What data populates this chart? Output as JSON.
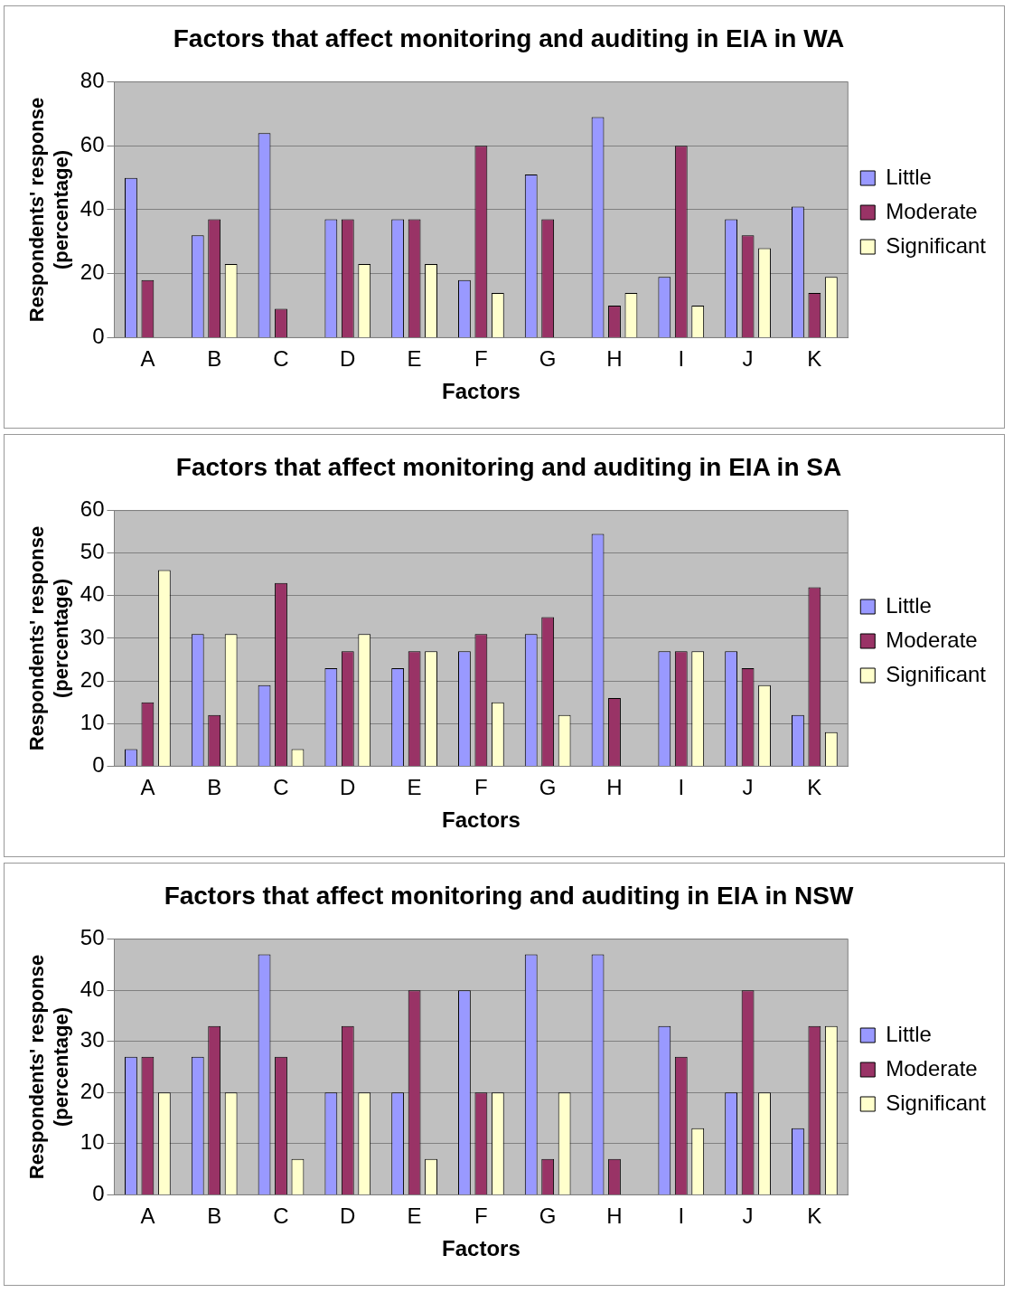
{
  "chart_data": [
    {
      "type": "bar",
      "title": "Factors that affect monitoring and auditing in EIA in WA",
      "xlabel": "Factors",
      "ylabel": "Respondents' response (percentage)",
      "categories": [
        "A",
        "B",
        "C",
        "D",
        "E",
        "F",
        "G",
        "H",
        "I",
        "J",
        "K"
      ],
      "series": [
        {
          "name": "Little",
          "color": "#9999ff",
          "values": [
            50,
            32,
            64,
            37,
            37,
            18,
            51,
            69,
            19,
            37,
            41
          ]
        },
        {
          "name": "Moderate",
          "color": "#993366",
          "values": [
            18,
            37,
            9,
            37,
            37,
            60,
            37,
            10,
            60,
            32,
            14
          ]
        },
        {
          "name": "Significant",
          "color": "#ffffcc",
          "values": [
            0,
            23,
            0,
            23,
            23,
            14,
            0,
            14,
            10,
            28,
            19
          ]
        }
      ],
      "ylim": [
        0,
        80
      ],
      "yticks": [
        0,
        20,
        40,
        60,
        80
      ],
      "grid": "y",
      "legend": "right"
    },
    {
      "type": "bar",
      "title": "Factors that affect monitoring and auditing in EIA in SA",
      "xlabel": "Factors",
      "ylabel": "Respondents' response (percentage)",
      "categories": [
        "A",
        "B",
        "C",
        "D",
        "E",
        "F",
        "G",
        "H",
        "I",
        "J",
        "K"
      ],
      "series": [
        {
          "name": "Little",
          "color": "#9999ff",
          "values": [
            4,
            31,
            19,
            23,
            23,
            27,
            31,
            54.5,
            27,
            27,
            12
          ]
        },
        {
          "name": "Moderate",
          "color": "#993366",
          "values": [
            15,
            12,
            43,
            27,
            27,
            31,
            35,
            16,
            27,
            23,
            42
          ]
        },
        {
          "name": "Significant",
          "color": "#ffffcc",
          "values": [
            46,
            31,
            4,
            31,
            27,
            15,
            12,
            0,
            27,
            19,
            8
          ]
        }
      ],
      "ylim": [
        0,
        60
      ],
      "yticks": [
        0,
        10,
        20,
        30,
        40,
        50,
        60
      ],
      "grid": "y",
      "legend": "right"
    },
    {
      "type": "bar",
      "title": "Factors that affect monitoring and auditing in EIA in NSW",
      "xlabel": "Factors",
      "ylabel": "Respondents' response (percentage)",
      "categories": [
        "A",
        "B",
        "C",
        "D",
        "E",
        "F",
        "G",
        "H",
        "I",
        "J",
        "K"
      ],
      "series": [
        {
          "name": "Little",
          "color": "#9999ff",
          "values": [
            27,
            27,
            47,
            20,
            20,
            40,
            47,
            47,
            33,
            20,
            13
          ]
        },
        {
          "name": "Moderate",
          "color": "#993366",
          "values": [
            27,
            33,
            27,
            33,
            40,
            20,
            7,
            7,
            27,
            40,
            33
          ]
        },
        {
          "name": "Significant",
          "color": "#ffffcc",
          "values": [
            20,
            20,
            7,
            20,
            7,
            20,
            20,
            0,
            13,
            20,
            33
          ]
        }
      ],
      "ylim": [
        0,
        50
      ],
      "yticks": [
        0,
        10,
        20,
        30,
        40,
        50
      ],
      "grid": "y",
      "legend": "right"
    }
  ]
}
